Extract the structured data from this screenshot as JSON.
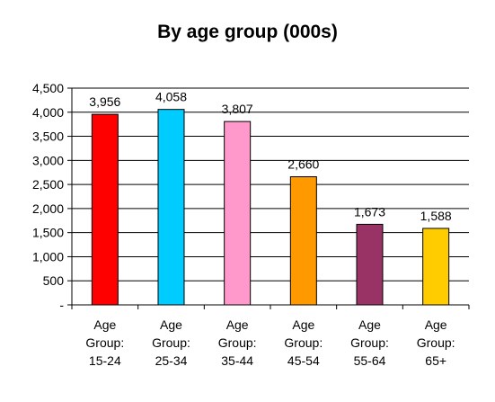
{
  "chart_data": {
    "type": "bar",
    "title": "By age group (000s)",
    "categories": [
      [
        "Age",
        "Group:",
        "15-24"
      ],
      [
        "Age",
        "Group:",
        "25-34"
      ],
      [
        "Age",
        "Group:",
        "35-44"
      ],
      [
        "Age",
        "Group:",
        "45-54"
      ],
      [
        "Age",
        "Group:",
        "55-64"
      ],
      [
        "Age",
        "Group:",
        "65+"
      ]
    ],
    "values": [
      3956,
      4058,
      3807,
      2660,
      1673,
      1588
    ],
    "data_labels": [
      "3,956",
      "4,058",
      "3,807",
      "2,660",
      "1,673",
      "1,588"
    ],
    "bar_colors": [
      "#ff0000",
      "#00ccff",
      "#ff99cc",
      "#ff9900",
      "#993366",
      "#ffcc00"
    ],
    "ylim": [
      0,
      4500
    ],
    "yticks": [
      0,
      500,
      1000,
      1500,
      2000,
      2500,
      3000,
      3500,
      4000,
      4500
    ],
    "ytick_labels": [
      "-",
      "500",
      "1,000",
      "1,500",
      "2,000",
      "2,500",
      "3,000",
      "3,500",
      "4,000",
      "4,500"
    ],
    "grid": true,
    "legend": "none"
  }
}
